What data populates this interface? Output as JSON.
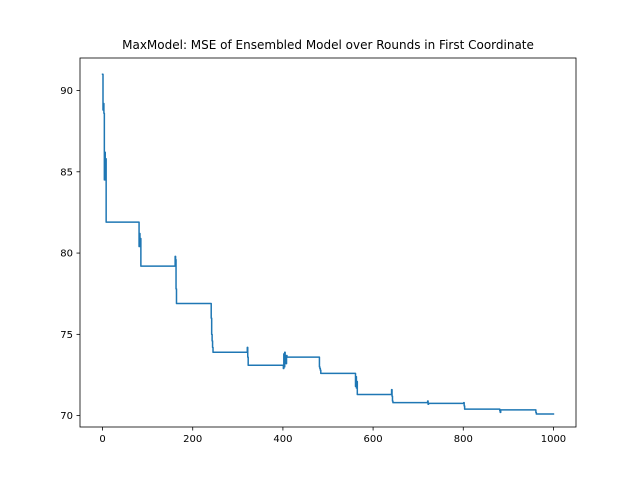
{
  "chart_data": {
    "type": "line",
    "title": "MaxModel: MSE of Ensembled Model over Rounds in First Coordinate",
    "xlabel": "",
    "ylabel": "",
    "xlim": [
      -50,
      1050
    ],
    "ylim": [
      69.3,
      92.0
    ],
    "xticks": [
      0,
      200,
      400,
      600,
      800,
      1000
    ],
    "xtick_labels": [
      "0",
      "200",
      "400",
      "600",
      "800",
      "1000"
    ],
    "yticks": [
      70,
      75,
      80,
      85,
      90
    ],
    "ytick_labels": [
      "70",
      "75",
      "80",
      "85",
      "90"
    ],
    "grid": false,
    "series": [
      {
        "name": "MSE",
        "color": "#1f77b4",
        "x": [
          0,
          1,
          2,
          3,
          4,
          5,
          6,
          7,
          8,
          9,
          10,
          80,
          81,
          82,
          83,
          84,
          85,
          86,
          88,
          90,
          160,
          161,
          162,
          163,
          164,
          166,
          240,
          241,
          242,
          243,
          244,
          245,
          246,
          320,
          321,
          322,
          323,
          324,
          325,
          400,
          401,
          402,
          403,
          404,
          405,
          406,
          407,
          408,
          409,
          410,
          480,
          481,
          482,
          483,
          484,
          485,
          560,
          561,
          562,
          563,
          564,
          565,
          566,
          640,
          641,
          642,
          643,
          644,
          645,
          646,
          720,
          721,
          722,
          723,
          724,
          800,
          801,
          802,
          803,
          804,
          880,
          881,
          882,
          883,
          884,
          960,
          961,
          962,
          963,
          1000
        ],
        "values": [
          91.0,
          88.8,
          89.2,
          88.6,
          84.5,
          86.2,
          84.5,
          85.8,
          81.9,
          81.9,
          81.9,
          81.9,
          80.4,
          81.2,
          80.4,
          80.9,
          79.2,
          79.2,
          79.2,
          79.2,
          79.2,
          79.8,
          79.6,
          77.8,
          76.9,
          76.9,
          76.9,
          76.0,
          75.0,
          74.6,
          74.2,
          73.9,
          73.9,
          73.9,
          74.2,
          73.6,
          73.1,
          73.1,
          73.1,
          73.1,
          72.9,
          73.8,
          73.0,
          73.9,
          73.4,
          73.6,
          73.2,
          73.7,
          73.6,
          73.6,
          73.6,
          73.0,
          72.9,
          72.8,
          72.6,
          72.6,
          72.6,
          71.8,
          72.4,
          71.7,
          72.1,
          71.3,
          71.3,
          71.3,
          71.6,
          71.2,
          70.9,
          70.8,
          70.8,
          70.8,
          70.8,
          70.9,
          70.7,
          70.75,
          70.75,
          70.75,
          70.8,
          70.6,
          70.4,
          70.4,
          70.4,
          70.3,
          70.2,
          70.35,
          70.35,
          70.35,
          70.2,
          70.1,
          70.1,
          70.1
        ]
      }
    ]
  }
}
